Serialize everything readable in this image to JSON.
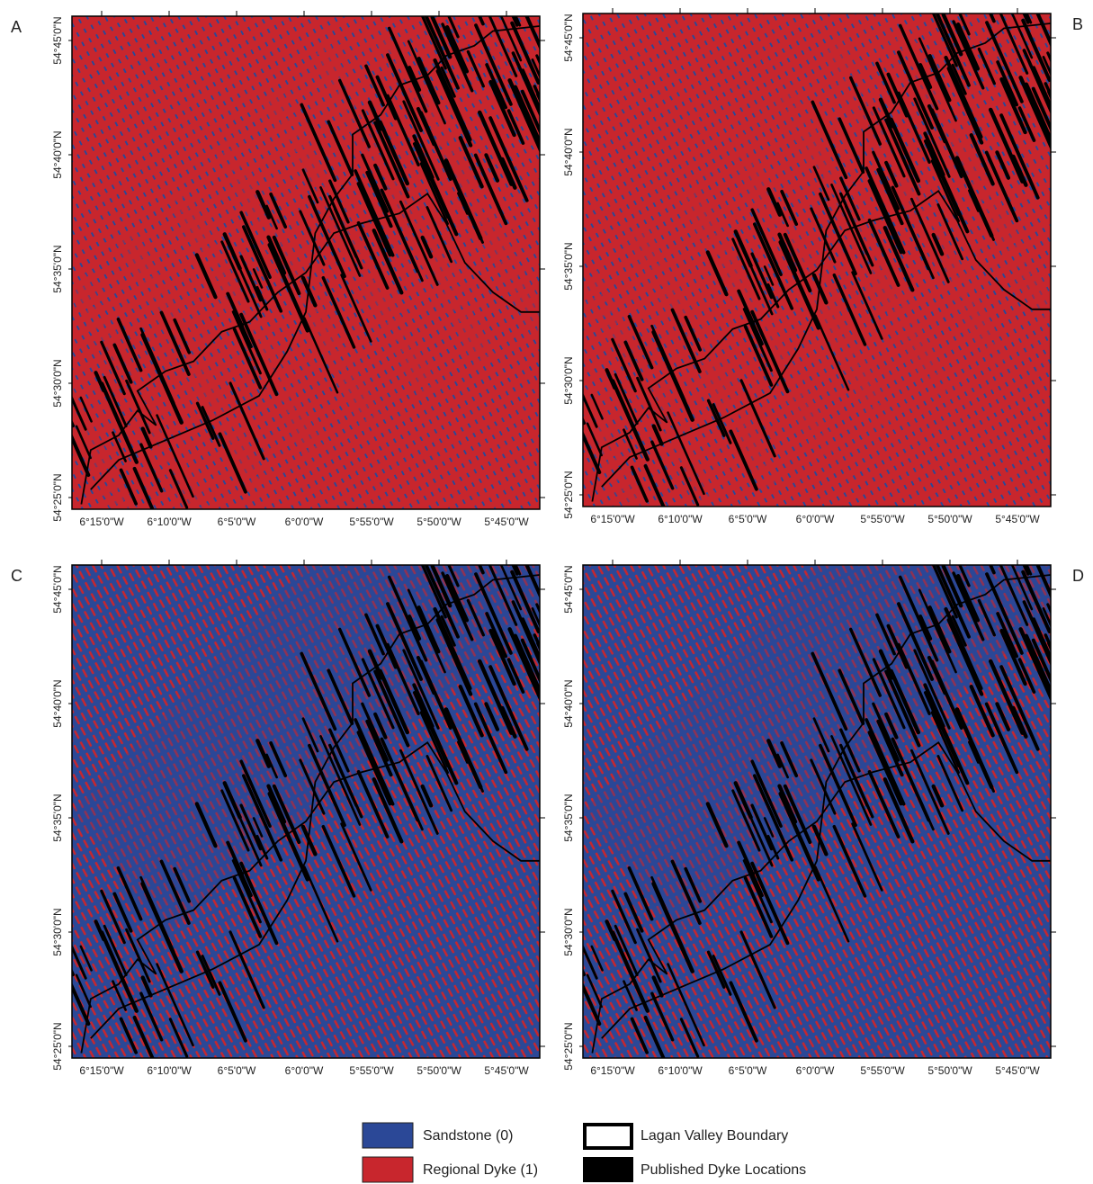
{
  "panels": [
    {
      "label": "A",
      "x_labels": [
        "6°15'0\"W",
        "6°10'0\"W",
        "6°5'0\"W",
        "6°0'0\"W",
        "5°55'0\"W",
        "5°50'0\"W",
        "5°45'0\"W"
      ],
      "y_labels": [
        "54°45'0\"N",
        "54°40'0\"N",
        "54°35'0\"N",
        "54°30'0\"N",
        "54°25'0\"N"
      ]
    },
    {
      "label": "B",
      "x_labels": [
        "6°15'0\"W",
        "6°10'0\"W",
        "6°5'0\"W",
        "6°0'0\"W",
        "5°55'0\"W",
        "5°50'0\"W",
        "5°45'0\"W"
      ],
      "y_labels": [
        "54°45'0\"N",
        "54°40'0\"N",
        "54°35'0\"N",
        "54°30'0\"N",
        "54°25'0\"N"
      ]
    },
    {
      "label": "C",
      "x_labels": [
        "6°15'0\"W",
        "6°10'0\"W",
        "6°5'0\"W",
        "6°0'0\"W",
        "5°55'0\"W",
        "5°50'0\"W",
        "5°45'0\"W"
      ],
      "y_labels": [
        "54°45'0\"N",
        "54°40'0\"N",
        "54°35'0\"N",
        "54°30'0\"N",
        "54°25'0\"N"
      ]
    },
    {
      "label": "D",
      "x_labels": [
        "6°15'0\"W",
        "6°10'0\"W",
        "6°5'0\"W",
        "6°0'0\"W",
        "5°55'0\"W",
        "5°50'0\"W",
        "5°45'0\"W"
      ],
      "y_labels": [
        "54°45'0\"N",
        "54°40'0\"N",
        "54°35'0\"N",
        "54°30'0\"N",
        "54°25'0\"N"
      ]
    }
  ],
  "legend": [
    "Sandstone (0)",
    "Regional Dyke (1)",
    "Lagan Valley Boundary",
    "Published Dyke Locations"
  ]
}
